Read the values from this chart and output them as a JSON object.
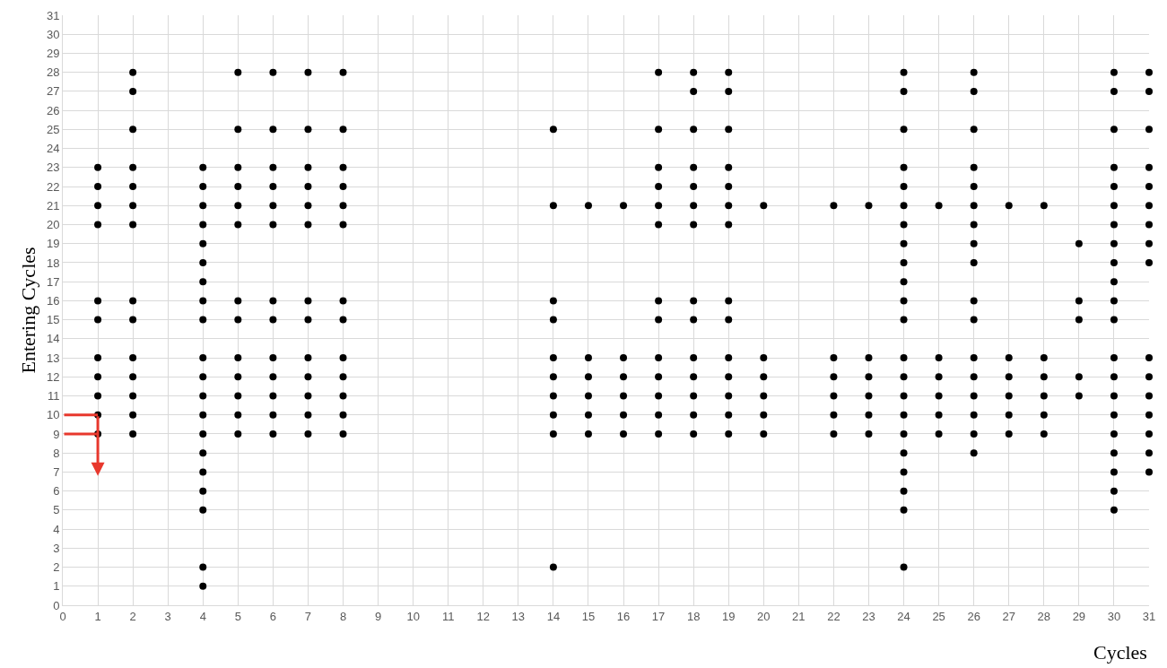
{
  "chart_data": {
    "type": "scatter",
    "xlabel": "Cycles",
    "ylabel": "Entering Cycles",
    "marker": "circle",
    "grid": true,
    "xlim": [
      0,
      31
    ],
    "ylim": [
      0,
      31
    ],
    "xticks": [
      0,
      1,
      2,
      3,
      4,
      5,
      6,
      7,
      8,
      9,
      10,
      11,
      12,
      13,
      14,
      15,
      16,
      17,
      18,
      19,
      20,
      21,
      22,
      23,
      24,
      25,
      26,
      27,
      28,
      29,
      30,
      31
    ],
    "yticks": [
      0,
      1,
      2,
      3,
      4,
      5,
      6,
      7,
      8,
      9,
      10,
      11,
      12,
      13,
      14,
      15,
      16,
      17,
      18,
      19,
      20,
      21,
      22,
      23,
      24,
      25,
      26,
      27,
      28,
      29,
      30,
      31
    ],
    "series": [
      {
        "color": "#000000",
        "x": [
          1,
          1,
          1,
          1,
          1,
          1,
          1,
          1,
          1,
          1,
          1
        ],
        "values": [
          23,
          22,
          21,
          20,
          16,
          15,
          13,
          12,
          11,
          10,
          9
        ]
      },
      {
        "color": "#000000",
        "x": [
          2,
          2,
          2,
          2,
          2,
          2,
          2,
          2,
          2,
          2,
          2,
          2,
          2,
          2
        ],
        "values": [
          28,
          27,
          25,
          23,
          22,
          21,
          20,
          16,
          15,
          13,
          12,
          11,
          10,
          9
        ]
      },
      {
        "color": "#000000",
        "x": [
          4,
          4,
          4,
          4,
          4,
          4,
          4,
          4,
          4,
          4,
          4,
          4,
          4,
          4,
          4,
          4,
          4,
          4,
          4,
          4
        ],
        "values": [
          23,
          22,
          21,
          20,
          19,
          18,
          17,
          16,
          15,
          13,
          12,
          11,
          10,
          9,
          8,
          7,
          6,
          5,
          2,
          1
        ]
      },
      {
        "color": "#000000",
        "x": [
          5,
          5,
          5,
          5,
          5,
          5,
          5,
          5,
          5,
          5,
          5,
          5,
          5
        ],
        "values": [
          28,
          25,
          23,
          22,
          21,
          20,
          16,
          15,
          13,
          12,
          11,
          10,
          9
        ]
      },
      {
        "color": "#000000",
        "x": [
          6,
          6,
          6,
          6,
          6,
          6,
          6,
          6,
          6,
          6,
          6,
          6,
          6
        ],
        "values": [
          28,
          25,
          23,
          22,
          21,
          20,
          16,
          15,
          13,
          12,
          11,
          10,
          9
        ]
      },
      {
        "color": "#000000",
        "x": [
          7,
          7,
          7,
          7,
          7,
          7,
          7,
          7,
          7,
          7,
          7,
          7,
          7
        ],
        "values": [
          28,
          25,
          23,
          22,
          21,
          20,
          16,
          15,
          13,
          12,
          11,
          10,
          9
        ]
      },
      {
        "color": "#000000",
        "x": [
          8,
          8,
          8,
          8,
          8,
          8,
          8,
          8,
          8,
          8,
          8,
          8,
          8
        ],
        "values": [
          28,
          25,
          23,
          22,
          21,
          20,
          16,
          15,
          13,
          12,
          11,
          10,
          9
        ]
      },
      {
        "color": "#000000",
        "x": [
          14,
          14,
          14,
          14,
          14,
          14,
          14,
          14,
          14,
          14
        ],
        "values": [
          25,
          21,
          16,
          15,
          13,
          12,
          11,
          10,
          9,
          2
        ]
      },
      {
        "color": "#000000",
        "x": [
          15,
          15,
          15,
          15,
          15,
          15
        ],
        "values": [
          21,
          13,
          12,
          11,
          10,
          9
        ]
      },
      {
        "color": "#000000",
        "x": [
          16,
          16,
          16,
          16,
          16,
          16
        ],
        "values": [
          21,
          13,
          12,
          11,
          10,
          9
        ]
      },
      {
        "color": "#000000",
        "x": [
          17,
          17,
          17,
          17,
          17,
          17,
          17,
          17,
          17,
          17,
          17,
          17,
          17
        ],
        "values": [
          28,
          25,
          23,
          22,
          21,
          20,
          16,
          15,
          13,
          12,
          11,
          10,
          9
        ]
      },
      {
        "color": "#000000",
        "x": [
          18,
          18,
          18,
          18,
          18,
          18,
          18,
          18,
          18,
          18,
          18,
          18,
          18,
          18
        ],
        "values": [
          28,
          27,
          25,
          23,
          22,
          21,
          20,
          16,
          15,
          13,
          12,
          11,
          10,
          9
        ]
      },
      {
        "color": "#000000",
        "x": [
          19,
          19,
          19,
          19,
          19,
          19,
          19,
          19,
          19,
          19,
          19,
          19,
          19,
          19
        ],
        "values": [
          28,
          27,
          25,
          23,
          22,
          21,
          20,
          16,
          15,
          13,
          12,
          11,
          10,
          9
        ]
      },
      {
        "color": "#000000",
        "x": [
          20,
          20,
          20,
          20,
          20,
          20
        ],
        "values": [
          21,
          13,
          12,
          11,
          10,
          9
        ]
      },
      {
        "color": "#000000",
        "x": [
          22,
          22,
          22,
          22,
          22,
          22
        ],
        "values": [
          21,
          13,
          12,
          11,
          10,
          9
        ]
      },
      {
        "color": "#000000",
        "x": [
          23,
          23,
          23,
          23,
          23,
          23
        ],
        "values": [
          21,
          13,
          12,
          11,
          10,
          9
        ]
      },
      {
        "color": "#000000",
        "x": [
          24,
          24,
          24,
          24,
          24,
          24,
          24,
          24,
          24,
          24,
          24,
          24,
          24,
          24,
          24,
          24,
          24,
          24,
          24,
          24,
          24,
          24
        ],
        "values": [
          28,
          27,
          25,
          23,
          22,
          21,
          20,
          19,
          18,
          17,
          16,
          15,
          13,
          12,
          11,
          10,
          9,
          8,
          7,
          6,
          5,
          2
        ]
      },
      {
        "color": "#000000",
        "x": [
          25,
          25,
          25,
          25,
          25,
          25
        ],
        "values": [
          21,
          13,
          12,
          11,
          10,
          9
        ]
      },
      {
        "color": "#000000",
        "x": [
          26,
          26,
          26,
          26,
          26,
          26,
          26,
          26,
          26,
          26,
          26,
          26,
          26,
          26,
          26,
          26,
          26
        ],
        "values": [
          28,
          27,
          25,
          23,
          22,
          21,
          20,
          19,
          18,
          16,
          15,
          13,
          12,
          11,
          10,
          9,
          8
        ]
      },
      {
        "color": "#000000",
        "x": [
          27,
          27,
          27,
          27,
          27,
          27
        ],
        "values": [
          21,
          13,
          12,
          11,
          10,
          9
        ]
      },
      {
        "color": "#000000",
        "x": [
          28,
          28,
          28,
          28,
          28,
          28
        ],
        "values": [
          21,
          13,
          12,
          11,
          10,
          9
        ]
      },
      {
        "color": "#000000",
        "x": [
          29,
          29,
          29,
          29,
          29
        ],
        "values": [
          19,
          16,
          15,
          12,
          11
        ]
      },
      {
        "color": "#000000",
        "x": [
          30,
          30,
          30,
          30,
          30,
          30,
          30,
          30,
          30,
          30,
          30,
          30,
          30,
          30,
          30,
          30,
          30,
          30,
          30,
          30,
          30
        ],
        "values": [
          28,
          27,
          25,
          23,
          22,
          21,
          20,
          19,
          18,
          17,
          16,
          15,
          13,
          12,
          11,
          10,
          9,
          8,
          7,
          6,
          5
        ]
      },
      {
        "color": "#000000",
        "x": [
          31,
          31,
          31,
          31,
          31,
          31,
          31,
          31,
          31,
          31,
          31,
          31,
          31,
          31,
          31,
          31
        ],
        "values": [
          28,
          27,
          25,
          23,
          22,
          21,
          20,
          19,
          18,
          13,
          12,
          11,
          10,
          9,
          8,
          7
        ]
      }
    ]
  }
}
